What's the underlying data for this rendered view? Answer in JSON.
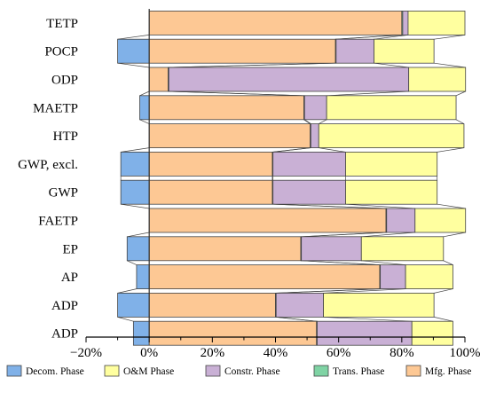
{
  "chart_data": {
    "type": "bar",
    "orientation": "horizontal",
    "stacked": true,
    "xlim": [
      -20,
      100
    ],
    "x_ticks": [
      "−20%",
      "0%",
      "20%",
      "40%",
      "60%",
      "80%",
      "100%"
    ],
    "x_tick_values": [
      -20,
      0,
      20,
      40,
      60,
      80,
      100
    ],
    "categories": [
      "TETP",
      "POCP",
      "ODP",
      "MAETP",
      "HTP",
      "GWP, excl.",
      "GWP",
      "FAETP",
      "EP",
      "AP",
      "ADP",
      "ADP"
    ],
    "series": [
      {
        "name": "Decom. Phase",
        "color": "#80b1e8",
        "values": [
          0,
          -10,
          0,
          -3,
          0,
          -9,
          -9,
          0,
          -7,
          -4,
          -10,
          -5
        ]
      },
      {
        "name": "Mfg. Phase",
        "color": "#fdc894",
        "values": [
          80,
          59,
          6,
          49,
          51,
          39,
          39,
          75,
          48,
          73,
          40,
          53
        ]
      },
      {
        "name": "Trans. Phase",
        "color": "#7fd3a4",
        "values": [
          0.3,
          0.2,
          0.2,
          0.2,
          0.2,
          0.2,
          0.2,
          0.2,
          0.2,
          0.2,
          0.2,
          0.2
        ]
      },
      {
        "name": "Constr. Phase",
        "color": "#c9b0d5",
        "values": [
          1.7,
          12,
          76,
          7,
          2.5,
          23,
          23,
          9,
          19,
          8,
          15,
          30
        ]
      },
      {
        "name": "O&M Phase",
        "color": "#ffff9f",
        "values": [
          18,
          19,
          18,
          41,
          46,
          29,
          29,
          16,
          26,
          15,
          35,
          13
        ]
      }
    ],
    "legend": {
      "placement": "bottom",
      "order": [
        "Decom. Phase",
        "O&M Phase",
        "Constr. Phase",
        "Trans. Phase",
        "Mfg. Phase"
      ]
    },
    "grid": false
  }
}
